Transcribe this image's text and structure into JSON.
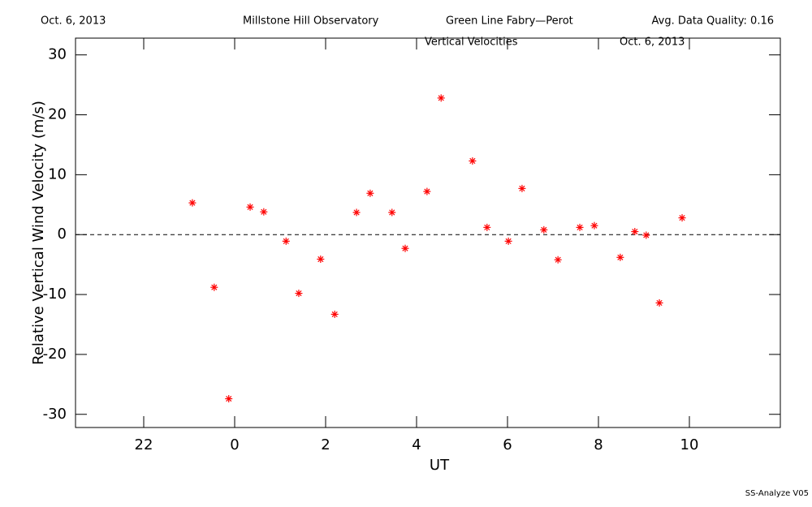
{
  "chart_data": {
    "type": "scatter",
    "header": [
      "Oct. 6, 2013",
      "Millstone Hill Observatory",
      "Green Line Fabry—Perot",
      "Avg. Data Quality: 0.16"
    ],
    "title": "Vertical Velocities",
    "date_label": "Oct. 6, 2013",
    "x_label": "UT",
    "y_label": "Relative Vertical Wind Velocity (m/s)",
    "footer": "SS-Analyze V05",
    "color": "#ff0000",
    "x": [
      -0.93,
      -0.45,
      -0.13,
      0.34,
      0.64,
      1.13,
      1.41,
      1.89,
      2.2,
      2.68,
      2.98,
      3.46,
      3.75,
      4.23,
      4.54,
      5.23,
      5.55,
      6.02,
      6.32,
      6.8,
      7.11,
      7.59,
      7.91,
      8.48,
      8.8,
      9.05,
      9.34,
      9.84
    ],
    "values": [
      5.3,
      -8.8,
      -27.4,
      4.6,
      3.8,
      -1.1,
      -9.8,
      -4.1,
      -13.3,
      3.7,
      6.9,
      3.7,
      -2.3,
      7.2,
      22.8,
      12.3,
      1.2,
      -1.1,
      7.7,
      0.8,
      -4.2,
      1.2,
      1.5,
      -3.8,
      0.5,
      -0.1,
      -11.4,
      2.8
    ],
    "xlim": [
      -3.5,
      12
    ],
    "xticks": [
      {
        "value": -2,
        "label": "22"
      },
      0,
      2,
      4,
      6,
      8,
      10
    ],
    "ylim": [
      -32.2,
      32.8
    ],
    "yticks": [
      -30,
      -20,
      -10,
      0,
      10,
      20,
      30
    ],
    "reference_line": 0
  }
}
